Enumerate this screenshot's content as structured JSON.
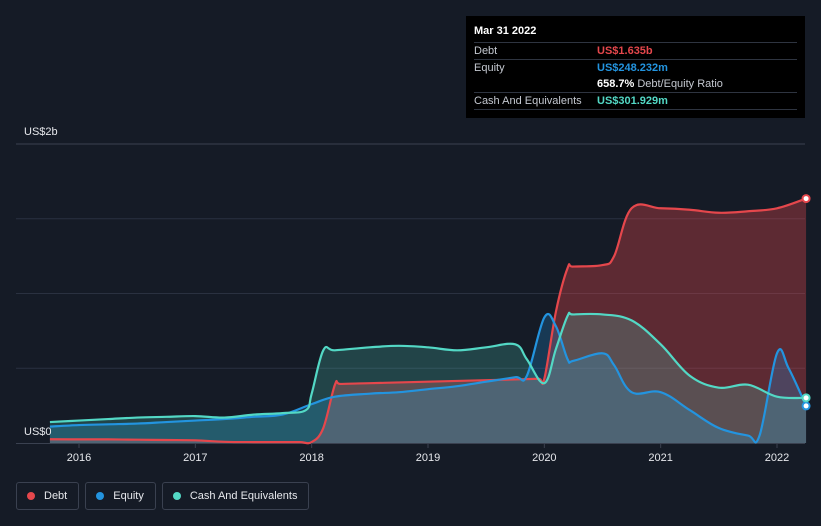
{
  "chart_data": {
    "type": "area",
    "y_unit_label_top": "US$2b",
    "y_unit_label_bottom": "US$0",
    "ylim": [
      0,
      2.0
    ],
    "xlim": [
      2015.75,
      2022.25
    ],
    "x_ticks": [
      "2016",
      "2017",
      "2018",
      "2019",
      "2020",
      "2021",
      "2022"
    ],
    "x_tick_values": [
      2016,
      2017,
      2018,
      2019,
      2020,
      2021,
      2022
    ],
    "grid": true,
    "series": [
      {
        "name": "Debt",
        "color": "#e5474c",
        "x": [
          2015.75,
          2016.0,
          2016.25,
          2016.5,
          2016.75,
          2017.0,
          2017.25,
          2017.5,
          2017.75,
          2017.9,
          2018.0,
          2018.1,
          2018.2,
          2018.25,
          2018.5,
          2018.75,
          2019.0,
          2019.25,
          2019.5,
          2019.75,
          2019.95,
          2020.0,
          2020.1,
          2020.2,
          2020.25,
          2020.5,
          2020.6,
          2020.75,
          2021.0,
          2021.25,
          2021.5,
          2021.75,
          2022.0,
          2022.25
        ],
        "values": [
          0.025,
          0.024,
          0.024,
          0.022,
          0.02,
          0.018,
          0.008,
          0.006,
          0.006,
          0.006,
          0.006,
          0.1,
          0.39,
          0.395,
          0.4,
          0.405,
          0.41,
          0.415,
          0.42,
          0.425,
          0.43,
          0.43,
          0.88,
          1.17,
          1.18,
          1.19,
          1.25,
          1.57,
          1.57,
          1.56,
          1.54,
          1.55,
          1.57,
          1.635
        ]
      },
      {
        "name": "Equity",
        "color": "#2394df",
        "x": [
          2015.75,
          2016.0,
          2016.25,
          2016.5,
          2016.75,
          2017.0,
          2017.25,
          2017.5,
          2017.75,
          2018.0,
          2018.2,
          2018.5,
          2018.75,
          2019.0,
          2019.25,
          2019.5,
          2019.75,
          2019.85,
          2020.0,
          2020.1,
          2020.2,
          2020.25,
          2020.5,
          2020.6,
          2020.75,
          2021.0,
          2021.25,
          2021.5,
          2021.75,
          2021.85,
          2022.0,
          2022.1,
          2022.25
        ],
        "values": [
          0.11,
          0.12,
          0.125,
          0.13,
          0.14,
          0.15,
          0.16,
          0.175,
          0.19,
          0.26,
          0.31,
          0.33,
          0.34,
          0.36,
          0.38,
          0.41,
          0.44,
          0.45,
          0.84,
          0.78,
          0.56,
          0.55,
          0.6,
          0.52,
          0.34,
          0.34,
          0.22,
          0.1,
          0.05,
          0.05,
          0.6,
          0.5,
          0.248
        ]
      },
      {
        "name": "Cash And Equivalents",
        "color": "#53d8c5",
        "x": [
          2015.75,
          2016.0,
          2016.25,
          2016.5,
          2016.75,
          2017.0,
          2017.25,
          2017.5,
          2017.75,
          2017.95,
          2018.0,
          2018.1,
          2018.2,
          2018.5,
          2018.75,
          2019.0,
          2019.25,
          2019.5,
          2019.75,
          2019.85,
          2020.0,
          2020.1,
          2020.2,
          2020.25,
          2020.5,
          2020.75,
          2021.0,
          2021.25,
          2021.5,
          2021.75,
          2022.0,
          2022.25
        ],
        "values": [
          0.14,
          0.15,
          0.16,
          0.17,
          0.175,
          0.18,
          0.17,
          0.19,
          0.2,
          0.22,
          0.33,
          0.62,
          0.62,
          0.64,
          0.65,
          0.64,
          0.62,
          0.64,
          0.66,
          0.56,
          0.4,
          0.63,
          0.85,
          0.86,
          0.86,
          0.82,
          0.66,
          0.45,
          0.37,
          0.39,
          0.31,
          0.302
        ]
      }
    ]
  },
  "tooltip": {
    "date": "Mar 31 2022",
    "rows": [
      {
        "label": "Debt",
        "value": "US$1.635b",
        "color": "#e5474c",
        "suffix": ""
      },
      {
        "label": "Equity",
        "value": "US$248.232m",
        "color": "#2394df",
        "suffix": ""
      },
      {
        "label": "",
        "value": "658.7%",
        "color": "#ffffff",
        "suffix": "Debt/Equity Ratio"
      },
      {
        "label": "Cash And Equivalents",
        "value": "US$301.929m",
        "color": "#53d8c5",
        "suffix": ""
      }
    ]
  },
  "legend": [
    {
      "label": "Debt",
      "color": "#e5474c"
    },
    {
      "label": "Equity",
      "color": "#2394df"
    },
    {
      "label": "Cash And Equivalents",
      "color": "#53d8c5"
    }
  ]
}
